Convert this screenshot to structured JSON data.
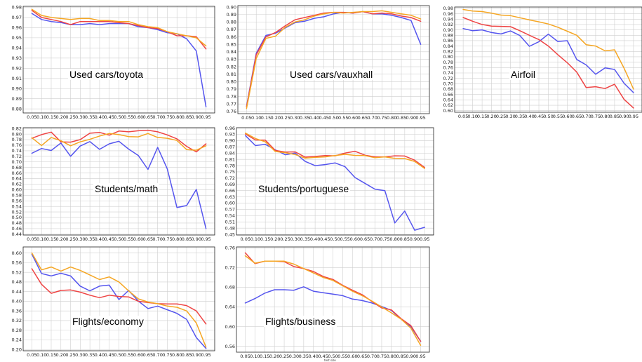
{
  "chart_data": [
    {
      "type": "line",
      "title": "Used cars/toyota",
      "x": [
        0.05,
        0.1,
        0.15,
        0.2,
        0.25,
        0.3,
        0.35,
        0.4,
        0.45,
        0.5,
        0.55,
        0.6,
        0.65,
        0.7,
        0.75,
        0.8,
        0.85,
        0.9,
        0.95
      ],
      "xtick_labels": [
        "0.05",
        "0.10",
        "0.15",
        "0.20",
        "0.25",
        "0.30",
        "0.35",
        "0.40",
        "0.45",
        "0.50",
        "0.55",
        "0.60",
        "0.65",
        "0.70",
        "0.75",
        "0.80",
        "0.85",
        "0.90",
        "0.95"
      ],
      "yticks": [
        0.88,
        0.89,
        0.9,
        0.91,
        0.92,
        0.93,
        0.94,
        0.95,
        0.96,
        0.97,
        0.98
      ],
      "ylim": [
        0.876,
        0.981
      ],
      "series": [
        {
          "color": "#5555ee",
          "values": [
            0.974,
            0.968,
            0.966,
            0.965,
            0.963,
            0.963,
            0.964,
            0.963,
            0.964,
            0.964,
            0.964,
            0.961,
            0.96,
            0.958,
            0.955,
            0.954,
            0.949,
            0.937,
            0.882
          ]
        },
        {
          "color": "#ee4444",
          "values": [
            0.977,
            0.97,
            0.968,
            0.966,
            0.963,
            0.966,
            0.966,
            0.966,
            0.966,
            0.965,
            0.964,
            0.962,
            0.96,
            0.959,
            0.956,
            0.952,
            0.952,
            0.951,
            0.939
          ]
        },
        {
          "color": "#f5a623",
          "values": [
            0.978,
            0.972,
            0.97,
            0.969,
            0.968,
            0.969,
            0.969,
            0.967,
            0.967,
            0.966,
            0.966,
            0.963,
            0.961,
            0.96,
            0.956,
            0.954,
            0.952,
            0.95,
            0.942
          ]
        }
      ]
    },
    {
      "type": "line",
      "title": "Used cars/vauxhall",
      "x": [
        0.05,
        0.1,
        0.15,
        0.2,
        0.25,
        0.3,
        0.35,
        0.4,
        0.45,
        0.5,
        0.55,
        0.6,
        0.65,
        0.7,
        0.75,
        0.8,
        0.85,
        0.9,
        0.95
      ],
      "xtick_labels": [
        "0.05",
        "0.10",
        "0.15",
        "0.20",
        "0.25",
        "0.30",
        "0.35",
        "0.40",
        "0.45",
        "0.50",
        "0.55",
        "0.60",
        "0.65",
        "0.70",
        "0.75",
        "0.80",
        "0.85",
        "0.90",
        "0.95"
      ],
      "yticks": [
        0.76,
        0.77,
        0.78,
        0.79,
        0.8,
        0.81,
        0.82,
        0.83,
        0.84,
        0.85,
        0.86,
        0.87,
        0.88,
        0.89,
        0.9
      ],
      "ylim": [
        0.757,
        0.902
      ],
      "series": [
        {
          "color": "#5555ee",
          "values": [
            0.767,
            0.838,
            0.862,
            0.865,
            0.872,
            0.879,
            0.881,
            0.885,
            0.887,
            0.891,
            0.893,
            0.892,
            0.894,
            0.891,
            0.891,
            0.889,
            0.886,
            0.882,
            0.85
          ]
        },
        {
          "color": "#ee4444",
          "values": [
            0.766,
            0.836,
            0.86,
            0.866,
            0.875,
            0.883,
            0.886,
            0.889,
            0.892,
            0.893,
            0.893,
            0.892,
            0.894,
            0.891,
            0.892,
            0.891,
            0.888,
            0.886,
            0.881
          ]
        },
        {
          "color": "#f5a623",
          "values": [
            0.764,
            0.831,
            0.858,
            0.861,
            0.873,
            0.88,
            0.883,
            0.888,
            0.891,
            0.893,
            0.892,
            0.893,
            0.894,
            0.894,
            0.895,
            0.893,
            0.891,
            0.889,
            0.884
          ]
        }
      ]
    },
    {
      "type": "line",
      "title": "Airfoil",
      "x": [
        0.05,
        0.1,
        0.15,
        0.2,
        0.25,
        0.3,
        0.35,
        0.4,
        0.45,
        0.5,
        0.55,
        0.6,
        0.65,
        0.7,
        0.75,
        0.8,
        0.85,
        0.9,
        0.95
      ],
      "xtick_labels": [
        "0.05",
        "0.10",
        "0.15",
        "0.20",
        "0.25",
        "0.30",
        "0.35",
        "0.40",
        "0.45",
        "0.50",
        "0.55",
        "0.60",
        "0.65",
        "0.70",
        "0.75",
        "0.80",
        "0.85",
        "0.90",
        "0.95"
      ],
      "yticks": [
        0.6,
        0.62,
        0.64,
        0.66,
        0.68,
        0.7,
        0.72,
        0.74,
        0.76,
        0.78,
        0.8,
        0.82,
        0.84,
        0.86,
        0.88,
        0.9,
        0.92,
        0.94,
        0.96,
        0.98
      ],
      "ylim": [
        0.594,
        0.985
      ],
      "series": [
        {
          "color": "#5555ee",
          "values": [
            0.905,
            0.897,
            0.9,
            0.89,
            0.885,
            0.896,
            0.879,
            0.839,
            0.856,
            0.884,
            0.857,
            0.86,
            0.79,
            0.77,
            0.735,
            0.759,
            0.753,
            0.702,
            0.667
          ]
        },
        {
          "color": "#ee4444",
          "values": [
            0.946,
            0.932,
            0.92,
            0.914,
            0.913,
            0.912,
            0.897,
            0.88,
            0.864,
            0.84,
            0.808,
            0.778,
            0.743,
            0.686,
            0.689,
            0.682,
            0.698,
            0.642,
            0.61
          ]
        },
        {
          "color": "#f5a623",
          "values": [
            0.976,
            0.97,
            0.968,
            0.962,
            0.955,
            0.953,
            0.945,
            0.937,
            0.93,
            0.922,
            0.91,
            0.895,
            0.88,
            0.845,
            0.84,
            0.822,
            0.826,
            0.758,
            0.68
          ]
        }
      ]
    },
    {
      "type": "line",
      "title": "Students/math",
      "x": [
        0.05,
        0.1,
        0.15,
        0.2,
        0.25,
        0.3,
        0.35,
        0.4,
        0.45,
        0.5,
        0.55,
        0.6,
        0.65,
        0.7,
        0.75,
        0.8,
        0.85,
        0.9,
        0.95
      ],
      "xtick_labels": [
        "0.05",
        "0.10",
        "0.15",
        "0.20",
        "0.25",
        "0.30",
        "0.35",
        "0.40",
        "0.45",
        "0.50",
        "0.55",
        "0.60",
        "0.65",
        "0.70",
        "0.75",
        "0.80",
        "0.85",
        "0.90",
        "0.95"
      ],
      "yticks": [
        0.44,
        0.46,
        0.48,
        0.5,
        0.52,
        0.54,
        0.56,
        0.58,
        0.6,
        0.62,
        0.64,
        0.66,
        0.68,
        0.7,
        0.72,
        0.74,
        0.76,
        0.78,
        0.8,
        0.82
      ],
      "ylim": [
        0.437,
        0.823
      ],
      "series": [
        {
          "color": "#5555ee",
          "values": [
            0.731,
            0.748,
            0.741,
            0.768,
            0.72,
            0.757,
            0.773,
            0.745,
            0.765,
            0.774,
            0.746,
            0.723,
            0.673,
            0.752,
            0.675,
            0.536,
            0.543,
            0.601,
            0.46
          ]
        },
        {
          "color": "#ee4444",
          "values": [
            0.785,
            0.798,
            0.807,
            0.772,
            0.771,
            0.78,
            0.803,
            0.806,
            0.796,
            0.811,
            0.808,
            0.812,
            0.814,
            0.808,
            0.797,
            0.783,
            0.756,
            0.736,
            0.765
          ]
        },
        {
          "color": "#f5a623",
          "values": [
            0.787,
            0.759,
            0.788,
            0.776,
            0.758,
            0.772,
            0.781,
            0.793,
            0.802,
            0.798,
            0.791,
            0.79,
            0.802,
            0.788,
            0.785,
            0.777,
            0.744,
            0.742,
            0.758
          ]
        }
      ]
    },
    {
      "type": "line",
      "title": "Students/portuguese",
      "x": [
        0.05,
        0.1,
        0.15,
        0.2,
        0.25,
        0.3,
        0.35,
        0.4,
        0.45,
        0.5,
        0.55,
        0.6,
        0.65,
        0.7,
        0.75,
        0.8,
        0.85,
        0.9,
        0.95
      ],
      "xtick_labels": [
        "0.05",
        "0.10",
        "0.15",
        "0.20",
        "0.25",
        "0.30",
        "0.35",
        "0.40",
        "0.45",
        "0.50",
        "0.55",
        "0.60",
        "0.65",
        "0.70",
        "0.75",
        "0.80",
        "0.85",
        "0.90",
        "0.95"
      ],
      "yticks": [
        0.45,
        0.48,
        0.51,
        0.54,
        0.57,
        0.6,
        0.63,
        0.66,
        0.69,
        0.72,
        0.75,
        0.78,
        0.81,
        0.84,
        0.87,
        0.9,
        0.93,
        0.96
      ],
      "ylim": [
        0.447,
        0.962
      ],
      "series": [
        {
          "color": "#5555ee",
          "values": [
            0.924,
            0.876,
            0.882,
            0.856,
            0.832,
            0.84,
            0.8,
            0.78,
            0.785,
            0.793,
            0.775,
            0.723,
            0.695,
            0.667,
            0.66,
            0.505,
            0.562,
            0.47,
            0.484
          ]
        },
        {
          "color": "#ee4444",
          "values": [
            0.932,
            0.903,
            0.902,
            0.853,
            0.845,
            0.846,
            0.821,
            0.824,
            0.828,
            0.827,
            0.84,
            0.849,
            0.83,
            0.822,
            0.822,
            0.827,
            0.826,
            0.806,
            0.771
          ]
        },
        {
          "color": "#f5a623",
          "values": [
            0.936,
            0.91,
            0.894,
            0.848,
            0.842,
            0.833,
            0.816,
            0.82,
            0.822,
            0.828,
            0.834,
            0.829,
            0.828,
            0.818,
            0.822,
            0.815,
            0.814,
            0.8,
            0.766
          ]
        }
      ]
    },
    {
      "type": "line",
      "title": "Flights/economy",
      "x": [
        0.05,
        0.1,
        0.15,
        0.2,
        0.25,
        0.3,
        0.35,
        0.4,
        0.45,
        0.5,
        0.55,
        0.6,
        0.65,
        0.7,
        0.75,
        0.8,
        0.85,
        0.9,
        0.95
      ],
      "xtick_labels": [
        "0.05",
        "0.10",
        "0.15",
        "0.20",
        "0.25",
        "0.30",
        "0.35",
        "0.40",
        "0.45",
        "0.50",
        "0.55",
        "0.60",
        "0.65",
        "0.70",
        "0.75",
        "0.80",
        "0.85",
        "0.90",
        "0.95"
      ],
      "yticks": [
        0.2,
        0.24,
        0.28,
        0.32,
        0.36,
        0.4,
        0.44,
        0.48,
        0.52,
        0.56,
        0.6
      ],
      "ylim": [
        0.195,
        0.625
      ],
      "series": [
        {
          "color": "#5555ee",
          "values": [
            0.595,
            0.515,
            0.505,
            0.516,
            0.505,
            0.463,
            0.443,
            0.463,
            0.467,
            0.407,
            0.445,
            0.401,
            0.37,
            0.38,
            0.365,
            0.35,
            0.325,
            0.25,
            0.205
          ]
        },
        {
          "color": "#ee4444",
          "values": [
            0.535,
            0.47,
            0.433,
            0.445,
            0.447,
            0.438,
            0.425,
            0.415,
            0.425,
            0.42,
            0.418,
            0.4,
            0.395,
            0.39,
            0.389,
            0.389,
            0.382,
            0.36,
            0.306
          ]
        },
        {
          "color": "#f5a623",
          "values": [
            0.6,
            0.53,
            0.542,
            0.525,
            0.542,
            0.528,
            0.509,
            0.49,
            0.501,
            0.48,
            0.443,
            0.41,
            0.397,
            0.39,
            0.38,
            0.375,
            0.36,
            0.31,
            0.21
          ]
        }
      ]
    },
    {
      "type": "line",
      "title": "Flights/business",
      "x": [
        0.05,
        0.1,
        0.15,
        0.2,
        0.25,
        0.3,
        0.35,
        0.4,
        0.45,
        0.5,
        0.55,
        0.6,
        0.65,
        0.7,
        0.75,
        0.8,
        0.85,
        0.9,
        0.95
      ],
      "xtick_labels": [
        "0.05",
        "0.10",
        "0.15",
        "0.20",
        "0.25",
        "0.30",
        "0.35",
        "0.40",
        "0.45",
        "0.50",
        "0.55",
        "0.60",
        "0.65",
        "0.70",
        "0.75",
        "0.80",
        "0.85",
        "0.90",
        "0.95"
      ],
      "xlabel": "test size",
      "yticks": [
        0.56,
        0.6,
        0.64,
        0.68,
        0.72,
        0.76
      ],
      "ylim": [
        0.548,
        0.762
      ],
      "series": [
        {
          "color": "#5555ee",
          "values": [
            0.648,
            0.657,
            0.668,
            0.675,
            0.675,
            0.674,
            0.681,
            0.672,
            0.669,
            0.666,
            0.663,
            0.656,
            0.653,
            0.648,
            0.641,
            0.633,
            0.615,
            0.6,
            0.57
          ]
        },
        {
          "color": "#ee4444",
          "values": [
            0.75,
            0.728,
            0.733,
            0.733,
            0.732,
            0.722,
            0.718,
            0.712,
            0.702,
            0.696,
            0.684,
            0.674,
            0.665,
            0.651,
            0.638,
            0.634,
            0.616,
            0.602,
            0.57
          ]
        },
        {
          "color": "#f5a623",
          "values": [
            0.744,
            0.729,
            0.733,
            0.733,
            0.733,
            0.727,
            0.718,
            0.709,
            0.7,
            0.694,
            0.683,
            0.672,
            0.663,
            0.652,
            0.64,
            0.628,
            0.615,
            0.597,
            0.562
          ]
        }
      ]
    }
  ]
}
